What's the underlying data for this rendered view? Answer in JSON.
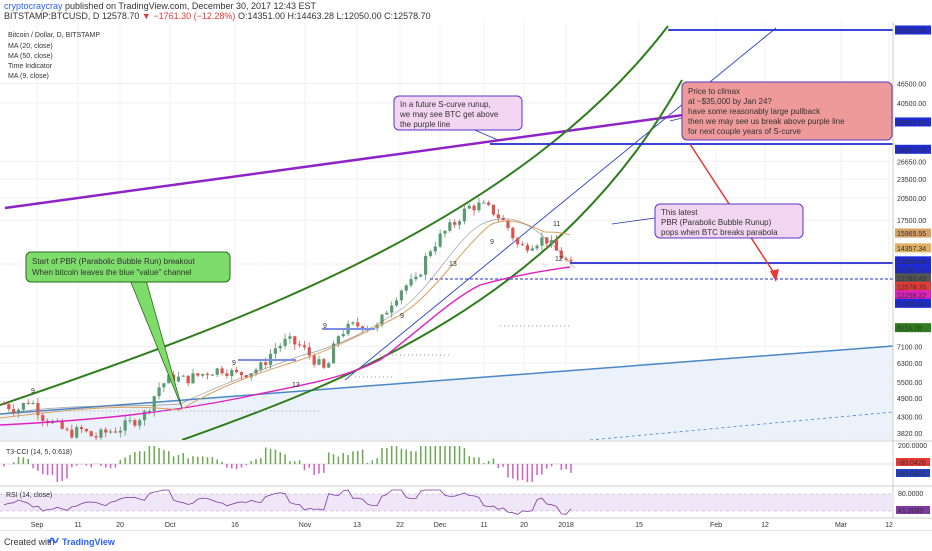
{
  "header": {
    "user": "cryptocraycray",
    "published": " published on TradingView.com, December 30, 2017 12:43 EST",
    "symbol": "BITSTAMP:BTCUSD, D",
    "price": "12578.70",
    "change": "−1761.30 (−12.28%)",
    "ohlc": "O:14351.00  H:14463.28  L:12050.00  C:12578.70"
  },
  "legend": {
    "title": "Bitcoin / Dollar, D, BITSTAMP",
    "items": [
      "MA (20, close)",
      "MA (50, close)",
      "Time Indicator",
      "MA (9, close)"
    ]
  },
  "footer": {
    "created_with": "Created with",
    "brand": "TradingView"
  },
  "colors": {
    "up": "#5b9a72",
    "down": "#d9534f",
    "purple": "#8e24c8",
    "blue": "#1e2bd4",
    "green": "#2e7d1c",
    "red": "#e53935",
    "ma_magenta": "#e020c0",
    "ma_orange": "#d8a060"
  },
  "chart_data": {
    "type": "candlestick",
    "title": "Bitcoin / Dollar, D, BITSTAMP",
    "y_scale": "log",
    "y_ticks": [
      "68203.48",
      "46500.00",
      "40500.00",
      "35334.00",
      "29057.03",
      "26650.00",
      "23500.00",
      "20500.00",
      "17500.00",
      "15965.55",
      "14357.34",
      "13086.86",
      "12782.11",
      "12760.45",
      "12578.70",
      "12258.22",
      "11395.00",
      "8114.78",
      "7100.00",
      "6300.00",
      "5500.00",
      "4900.00",
      "4300.00",
      "3820.00"
    ],
    "x_ticks": [
      "Sep",
      "11",
      "20",
      "Oct",
      "16",
      "Nov",
      "13",
      "22",
      "Dec",
      "11",
      "20",
      "2018",
      "15",
      "Feb",
      "12",
      "Mar",
      "12"
    ],
    "price_path": [
      4700,
      4500,
      4850,
      4300,
      4050,
      3800,
      3900,
      3700,
      3850,
      3950,
      4150,
      4400,
      5300,
      5700,
      5600,
      5750,
      5950,
      6050,
      5800,
      5900,
      6150,
      7000,
      7400,
      7100,
      6500,
      5900,
      7800,
      8200,
      8300,
      8100,
      9700,
      10900,
      11300,
      14100,
      15800,
      17200,
      19200,
      19500,
      18600,
      16900,
      14300,
      14900,
      15400,
      13800,
      12578
    ],
    "annotations": [
      "Start of PBR (Parabolic Bubble Run) breakout\nWhen bitcoin leaves the blue \"value\" channel",
      "In a future S-curve runup,\nwe may see BTC get above\nthe purple line",
      "Price to climax\nat ~$35,000 by Jan 24?\nhave some reasonably large pullback\nthen we may see us break above purple line\nfor next couple years of S-curve",
      "This latest\nPBR (Parabolic Bubble Runup)\npops when BTC breaks parabola"
    ],
    "indicators": [
      {
        "name": "T3-CCI (14, 5, 0.618)",
        "values": [
          "-80.0426",
          "-80.0426"
        ]
      },
      {
        "name": "RSI (14, close)",
        "values": [
          "80.0000",
          "41.3089"
        ]
      }
    ],
    "candle_labels": [
      "9",
      "9",
      "13",
      "9",
      "9",
      "13",
      "9",
      "12",
      "11"
    ]
  }
}
